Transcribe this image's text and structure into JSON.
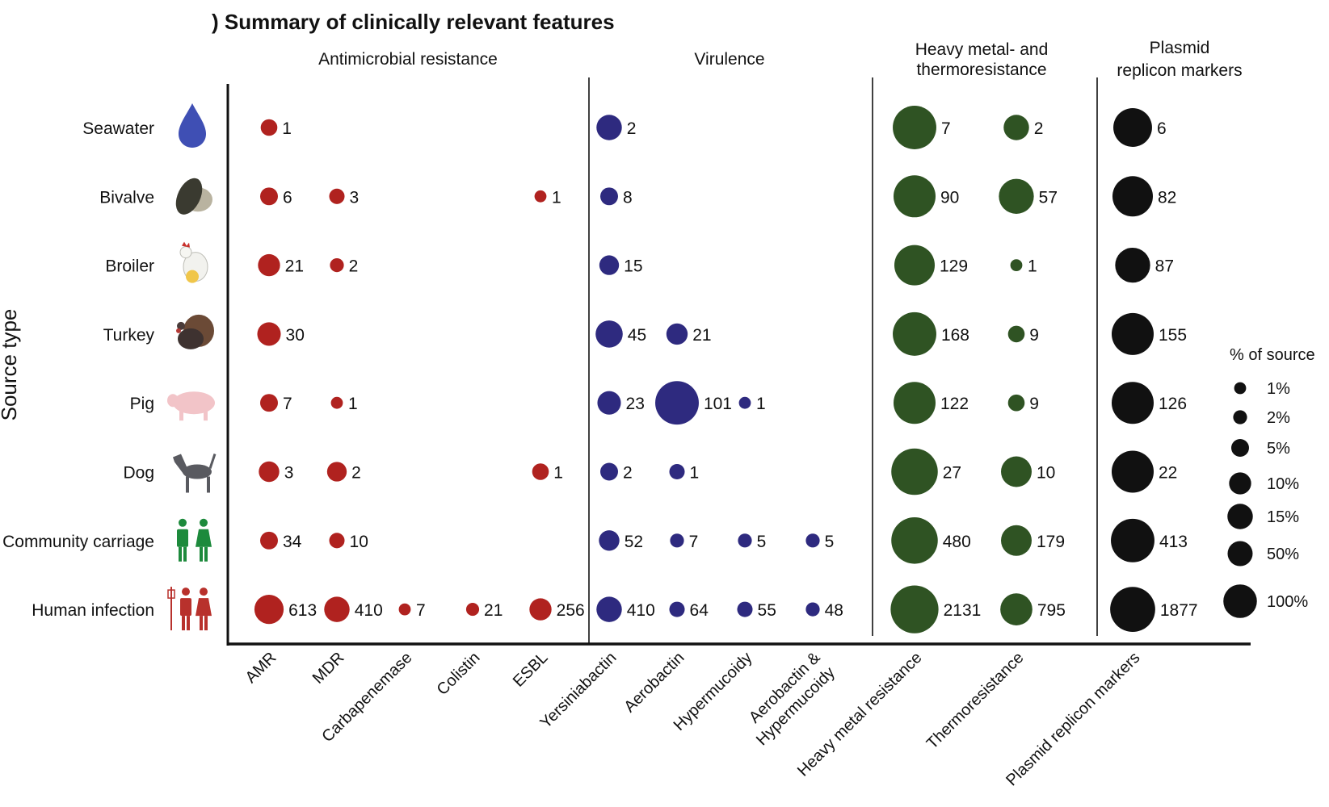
{
  "chart_data": {
    "type": "scatter",
    "subtype": "bubble-matrix",
    "title": ") Summary of clinically relevant features",
    "ylabel": "Source type",
    "rows": [
      "Seawater",
      "Bivalve",
      "Broiler",
      "Turkey",
      "Pig",
      "Dog",
      "Community carriage",
      "Human infection"
    ],
    "columns": [
      "AMR",
      "MDR",
      "Carbapenemase",
      "Colistin",
      "ESBL",
      "Yersiniabactin",
      "Aerobactin",
      "Hypermucoidy",
      "Aerobactin & Hypermucoidy",
      "Heavy metal resistance",
      "Thermoresistance",
      "Plasmid replicon markers"
    ],
    "groups": [
      {
        "label": "Antimicrobial resistance",
        "color": "#b0221f",
        "columns": [
          "AMR",
          "MDR",
          "Carbapenemase",
          "Colistin",
          "ESBL"
        ]
      },
      {
        "label": "Virulence",
        "color": "#2e2a7f",
        "columns": [
          "Yersiniabactin",
          "Aerobactin",
          "Hypermucoidy",
          "Aerobactin & Hypermucoidy"
        ]
      },
      {
        "label": "Heavy metal- and thermoresistance",
        "color": "#2f5323",
        "columns": [
          "Heavy metal resistance",
          "Thermoresistance"
        ]
      },
      {
        "label": "Plasmid replicon markers",
        "color": "#111111",
        "columns": [
          "Plasmid replicon markers"
        ]
      }
    ],
    "points": [
      {
        "row": "Seawater",
        "col": "AMR",
        "count": "1",
        "pct": 4
      },
      {
        "row": "Seawater",
        "col": "Yersiniabactin",
        "count": "2",
        "pct": 15
      },
      {
        "row": "Seawater",
        "col": "Heavy metal resistance",
        "count": "7",
        "pct": 60
      },
      {
        "row": "Seawater",
        "col": "Thermoresistance",
        "count": "2",
        "pct": 15
      },
      {
        "row": "Seawater",
        "col": "Plasmid replicon markers",
        "count": "6",
        "pct": 45
      },
      {
        "row": "Bivalve",
        "col": "AMR",
        "count": "6",
        "pct": 5
      },
      {
        "row": "Bivalve",
        "col": "MDR",
        "count": "3",
        "pct": 3
      },
      {
        "row": "Bivalve",
        "col": "ESBL",
        "count": "1",
        "pct": 1
      },
      {
        "row": "Bivalve",
        "col": "Yersiniabactin",
        "count": "8",
        "pct": 5
      },
      {
        "row": "Bivalve",
        "col": "Heavy metal resistance",
        "count": "90",
        "pct": 55
      },
      {
        "row": "Bivalve",
        "col": "Thermoresistance",
        "count": "57",
        "pct": 35
      },
      {
        "row": "Bivalve",
        "col": "Plasmid replicon markers",
        "count": "82",
        "pct": 50
      },
      {
        "row": "Broiler",
        "col": "AMR",
        "count": "21",
        "pct": 10
      },
      {
        "row": "Broiler",
        "col": "MDR",
        "count": "2",
        "pct": 2
      },
      {
        "row": "Broiler",
        "col": "Yersiniabactin",
        "count": "15",
        "pct": 7
      },
      {
        "row": "Broiler",
        "col": "Heavy metal resistance",
        "count": "129",
        "pct": 50
      },
      {
        "row": "Broiler",
        "col": "Thermoresistance",
        "count": "1",
        "pct": 1
      },
      {
        "row": "Broiler",
        "col": "Plasmid replicon markers",
        "count": "87",
        "pct": 35
      },
      {
        "row": "Turkey",
        "col": "AMR",
        "count": "30",
        "pct": 12
      },
      {
        "row": "Turkey",
        "col": "Yersiniabactin",
        "count": "45",
        "pct": 18
      },
      {
        "row": "Turkey",
        "col": "Aerobactin",
        "count": "21",
        "pct": 9
      },
      {
        "row": "Turkey",
        "col": "Heavy metal resistance",
        "count": "168",
        "pct": 60
      },
      {
        "row": "Turkey",
        "col": "Thermoresistance",
        "count": "9",
        "pct": 4
      },
      {
        "row": "Turkey",
        "col": "Plasmid replicon markers",
        "count": "155",
        "pct": 55
      },
      {
        "row": "Pig",
        "col": "AMR",
        "count": "7",
        "pct": 5
      },
      {
        "row": "Pig",
        "col": "MDR",
        "count": "1",
        "pct": 1
      },
      {
        "row": "Pig",
        "col": "Yersiniabactin",
        "count": "23",
        "pct": 12
      },
      {
        "row": "Pig",
        "col": "Aerobactin",
        "count": "101",
        "pct": 60
      },
      {
        "row": "Pig",
        "col": "Hypermucoidy",
        "count": "1",
        "pct": 1
      },
      {
        "row": "Pig",
        "col": "Heavy metal resistance",
        "count": "122",
        "pct": 55
      },
      {
        "row": "Pig",
        "col": "Thermoresistance",
        "count": "9",
        "pct": 4
      },
      {
        "row": "Pig",
        "col": "Plasmid replicon markers",
        "count": "126",
        "pct": 55
      },
      {
        "row": "Dog",
        "col": "AMR",
        "count": "3",
        "pct": 8
      },
      {
        "row": "Dog",
        "col": "MDR",
        "count": "2",
        "pct": 7
      },
      {
        "row": "Dog",
        "col": "ESBL",
        "count": "1",
        "pct": 4
      },
      {
        "row": "Dog",
        "col": "Yersiniabactin",
        "count": "2",
        "pct": 5
      },
      {
        "row": "Dog",
        "col": "Aerobactin",
        "count": "1",
        "pct": 3
      },
      {
        "row": "Dog",
        "col": "Heavy metal resistance",
        "count": "27",
        "pct": 70
      },
      {
        "row": "Dog",
        "col": "Thermoresistance",
        "count": "10",
        "pct": 25
      },
      {
        "row": "Dog",
        "col": "Plasmid replicon markers",
        "count": "22",
        "pct": 55
      },
      {
        "row": "Community carriage",
        "col": "AMR",
        "count": "34",
        "pct": 5
      },
      {
        "row": "Community carriage",
        "col": "MDR",
        "count": "10",
        "pct": 3
      },
      {
        "row": "Community carriage",
        "col": "Yersiniabactin",
        "count": "52",
        "pct": 8
      },
      {
        "row": "Community carriage",
        "col": "Aerobactin",
        "count": "7",
        "pct": 2
      },
      {
        "row": "Community carriage",
        "col": "Hypermucoidy",
        "count": "5",
        "pct": 2
      },
      {
        "row": "Community carriage",
        "col": "Aerobactin & Hypermucoidy",
        "count": "5",
        "pct": 2
      },
      {
        "row": "Community carriage",
        "col": "Heavy metal resistance",
        "count": "480",
        "pct": 70
      },
      {
        "row": "Community carriage",
        "col": "Thermoresistance",
        "count": "179",
        "pct": 25
      },
      {
        "row": "Community carriage",
        "col": "Plasmid replicon markers",
        "count": "413",
        "pct": 60
      },
      {
        "row": "Human infection",
        "col": "AMR",
        "count": "613",
        "pct": 22
      },
      {
        "row": "Human infection",
        "col": "MDR",
        "count": "410",
        "pct": 15
      },
      {
        "row": "Human infection",
        "col": "Carbapenemase",
        "count": "7",
        "pct": 1
      },
      {
        "row": "Human infection",
        "col": "Colistin",
        "count": "21",
        "pct": 1.5
      },
      {
        "row": "Human infection",
        "col": "ESBL",
        "count": "256",
        "pct": 10
      },
      {
        "row": "Human infection",
        "col": "Yersiniabactin",
        "count": "410",
        "pct": 15
      },
      {
        "row": "Human infection",
        "col": "Aerobactin",
        "count": "64",
        "pct": 3
      },
      {
        "row": "Human infection",
        "col": "Hypermucoidy",
        "count": "55",
        "pct": 3
      },
      {
        "row": "Human infection",
        "col": "Aerobactin & Hypermucoidy",
        "count": "48",
        "pct": 2
      },
      {
        "row": "Human infection",
        "col": "Heavy metal resistance",
        "count": "2131",
        "pct": 75
      },
      {
        "row": "Human infection",
        "col": "Thermoresistance",
        "count": "795",
        "pct": 28
      },
      {
        "row": "Human infection",
        "col": "Plasmid replicon markers",
        "count": "1877",
        "pct": 65
      }
    ],
    "legend": {
      "title": "% of source",
      "placement": "right",
      "entries": [
        {
          "label": "1%",
          "pct": 1
        },
        {
          "label": "2%",
          "pct": 2
        },
        {
          "label": "5%",
          "pct": 5
        },
        {
          "label": "10%",
          "pct": 10
        },
        {
          "label": "15%",
          "pct": 15
        },
        {
          "label": "50%",
          "pct": 50
        },
        {
          "label": "100%",
          "pct": 100
        }
      ]
    }
  }
}
